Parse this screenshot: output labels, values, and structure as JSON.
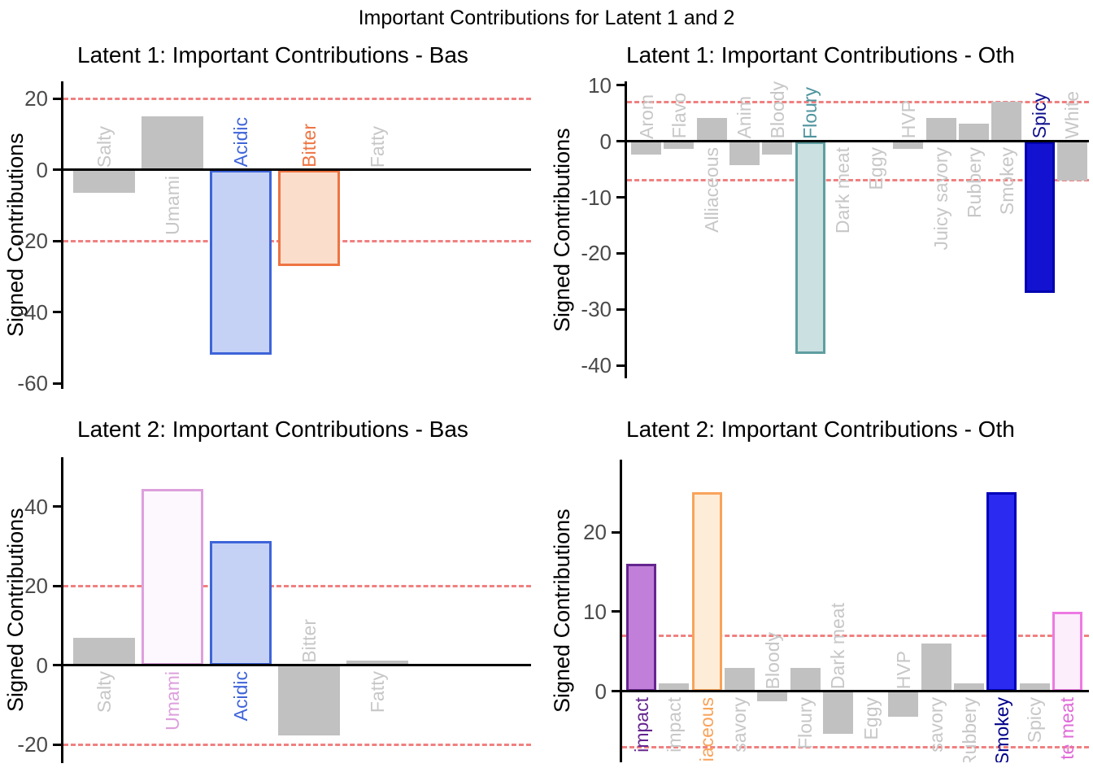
{
  "main_title": "Important Contributions for Latent 1 and 2",
  "threshold_color": "#f08080",
  "axis_color": "#000000",
  "tick_label_color": "#4a4a4a",
  "chart_data": [
    {
      "type": "bar",
      "title": "Latent 1: Important Contributions - Bas",
      "ylabel": "Signed Contributions",
      "yticks": [
        20,
        0,
        -20,
        -40,
        -60
      ],
      "ylim": [
        -61.5,
        24.8
      ],
      "thresholds": [
        20,
        -20
      ],
      "grid": false,
      "legend": "none",
      "categories": [
        "Salty",
        "Umami",
        "Acidic",
        "Bitter",
        "Fatty"
      ],
      "values": [
        -6.5,
        15,
        -52,
        -27,
        -0.3
      ],
      "bars": [
        {
          "label": "Salty",
          "value": -6.5,
          "fill": "#c1c1c1",
          "stroke": "#c1c1c1",
          "label_color": "#c7c7c7"
        },
        {
          "label": "Umami",
          "value": 15,
          "fill": "#c1c1c1",
          "stroke": "#c1c1c1",
          "label_color": "#c7c7c7"
        },
        {
          "label": "Acidic",
          "value": -52,
          "fill": "#c6d2f5",
          "stroke": "#3e64d9",
          "label_color": "#3e64d9"
        },
        {
          "label": "Bitter",
          "value": -27,
          "fill": "#fbddcb",
          "stroke": "#ee7442",
          "label_color": "#ee7442"
        },
        {
          "label": "Fatty",
          "value": -0.3,
          "fill": "#c1c1c1",
          "stroke": "#c1c1c1",
          "label_color": "#c7c7c7"
        }
      ]
    },
    {
      "type": "bar",
      "title": "Latent 1: Important Contributions - Oth",
      "ylabel": "Signed Contributions",
      "yticks": [
        10,
        0,
        -10,
        -20,
        -30,
        -40
      ],
      "ylim": [
        -42.3,
        10.7
      ],
      "thresholds": [
        7,
        -7
      ],
      "grid": false,
      "legend": "none",
      "categories": [
        "Arom",
        "Flavo",
        "Alliaceous",
        "Anim",
        "Bloody",
        "Floury",
        "Dark meat",
        "Eggy",
        "HVP",
        "Juicy savory",
        "Rubbery",
        "Smokey",
        "Spicy",
        "White"
      ],
      "values": [
        -2.3,
        -1.4,
        4.1,
        -4.2,
        -2.3,
        -38,
        0.2,
        0.2,
        -1.4,
        4.2,
        3.2,
        7,
        -27,
        -7
      ],
      "bars": [
        {
          "label": "Arom",
          "value": -2.3,
          "fill": "#c1c1c1",
          "stroke": "#c1c1c1",
          "label_color": "#c7c7c7"
        },
        {
          "label": "Flavo",
          "value": -1.4,
          "fill": "#c1c1c1",
          "stroke": "#c1c1c1",
          "label_color": "#c7c7c7"
        },
        {
          "label": "Alliaceous",
          "value": 4.1,
          "fill": "#c1c1c1",
          "stroke": "#c1c1c1",
          "label_color": "#c7c7c7"
        },
        {
          "label": "Anim",
          "value": -4.2,
          "fill": "#c1c1c1",
          "stroke": "#c1c1c1",
          "label_color": "#c7c7c7"
        },
        {
          "label": "Bloody",
          "value": -2.3,
          "fill": "#c1c1c1",
          "stroke": "#c1c1c1",
          "label_color": "#c7c7c7"
        },
        {
          "label": "Floury",
          "value": -38,
          "fill": "#cbe0e1",
          "stroke": "#5f9ea0",
          "label_color": "#4f949e"
        },
        {
          "label": "Dark meat",
          "value": 0.2,
          "fill": "#c1c1c1",
          "stroke": "#c1c1c1",
          "label_color": "#c7c7c7"
        },
        {
          "label": "Eggy",
          "value": 0.2,
          "fill": "#c1c1c1",
          "stroke": "#c1c1c1",
          "label_color": "#c7c7c7"
        },
        {
          "label": "HVP",
          "value": -1.4,
          "fill": "#c1c1c1",
          "stroke": "#c1c1c1",
          "label_color": "#c7c7c7"
        },
        {
          "label": "Juicy savory",
          "value": 4.2,
          "fill": "#c1c1c1",
          "stroke": "#c1c1c1",
          "label_color": "#c7c7c7"
        },
        {
          "label": "Rubbery",
          "value": 3.2,
          "fill": "#c1c1c1",
          "stroke": "#c1c1c1",
          "label_color": "#c7c7c7"
        },
        {
          "label": "Smokey",
          "value": 7,
          "fill": "#c1c1c1",
          "stroke": "#c1c1c1",
          "label_color": "#c7c7c7"
        },
        {
          "label": "Spicy",
          "value": -27,
          "fill": "#1212d0",
          "stroke": "#0000b0",
          "label_color": "#12128e"
        },
        {
          "label": "White",
          "value": -7,
          "fill": "#c1c1c1",
          "stroke": "#c1c1c1",
          "label_color": "#c7c7c7"
        }
      ]
    },
    {
      "type": "bar",
      "title": "Latent 2: Important Contributions - Bas",
      "ylabel": "Signed Contributions",
      "yticks": [
        40,
        20,
        0,
        -20
      ],
      "ylim": [
        -24.7,
        52.5
      ],
      "thresholds": [
        20,
        -20
      ],
      "grid": false,
      "legend": "none",
      "categories": [
        "Salty",
        "Umami",
        "Acidic",
        "Bitter",
        "Fatty"
      ],
      "values": [
        7,
        44.5,
        31.4,
        -17.7,
        1.2
      ],
      "bars": [
        {
          "label": "Salty",
          "value": 7,
          "fill": "#c1c1c1",
          "stroke": "#c1c1c1",
          "label_color": "#c7c7c7"
        },
        {
          "label": "Umami",
          "value": 44.5,
          "fill": "#fdf8fd",
          "stroke": "#dda0dd",
          "label_color": "#dda0dd"
        },
        {
          "label": "Acidic",
          "value": 31.4,
          "fill": "#c6d2f5",
          "stroke": "#3e64d9",
          "label_color": "#3e64d9"
        },
        {
          "label": "Bitter",
          "value": -17.7,
          "fill": "#c1c1c1",
          "stroke": "#c1c1c1",
          "label_color": "#c7c7c7"
        },
        {
          "label": "Fatty",
          "value": 1.2,
          "fill": "#c1c1c1",
          "stroke": "#c1c1c1",
          "label_color": "#c7c7c7"
        }
      ]
    },
    {
      "type": "bar",
      "title": "Latent 2: Important Contributions - Oth",
      "ylabel": "Signed Contributions",
      "yticks": [
        20,
        10,
        0
      ],
      "ylim": [
        -8.9,
        29.1
      ],
      "thresholds": [
        7,
        -7
      ],
      "grid": false,
      "legend": "none",
      "categories": [
        "impact",
        "impact",
        "iaceous",
        "savory",
        "Bloody",
        "Floury",
        "Dark meat",
        "Eggy",
        "HVP",
        "savory",
        "Rubbery",
        "Smokey",
        "Spicy",
        "te meat"
      ],
      "values": [
        16,
        1,
        25,
        3,
        -1.2,
        3,
        -5.3,
        0.2,
        -3.2,
        6,
        1,
        25,
        1,
        10
      ],
      "bars": [
        {
          "label": "impact",
          "value": 16,
          "fill": "#c17fd9",
          "stroke": "#65258f",
          "label_color": "#65258f"
        },
        {
          "label": "impact",
          "value": 1,
          "fill": "#c1c1c1",
          "stroke": "#c1c1c1",
          "label_color": "#c7c7c7"
        },
        {
          "label": "iaceous",
          "value": 25,
          "fill": "#fdecd8",
          "stroke": "#f9a35a",
          "label_color": "#f9a35a"
        },
        {
          "label": "savory",
          "value": 3,
          "fill": "#c1c1c1",
          "stroke": "#c1c1c1",
          "label_color": "#c7c7c7"
        },
        {
          "label": "Bloody",
          "value": -1.2,
          "fill": "#c1c1c1",
          "stroke": "#c1c1c1",
          "label_color": "#c7c7c7"
        },
        {
          "label": "Floury",
          "value": 3,
          "fill": "#c1c1c1",
          "stroke": "#c1c1c1",
          "label_color": "#c7c7c7"
        },
        {
          "label": "Dark meat",
          "value": -5.3,
          "fill": "#c1c1c1",
          "stroke": "#c1c1c1",
          "label_color": "#c7c7c7"
        },
        {
          "label": "Eggy",
          "value": 0.2,
          "fill": "#c1c1c1",
          "stroke": "#c1c1c1",
          "label_color": "#c7c7c7"
        },
        {
          "label": "HVP",
          "value": -3.2,
          "fill": "#c1c1c1",
          "stroke": "#c1c1c1",
          "label_color": "#c7c7c7"
        },
        {
          "label": "savory",
          "value": 6,
          "fill": "#c1c1c1",
          "stroke": "#c1c1c1",
          "label_color": "#c7c7c7"
        },
        {
          "label": "Rubbery",
          "value": 1,
          "fill": "#c1c1c1",
          "stroke": "#c1c1c1",
          "label_color": "#c7c7c7"
        },
        {
          "label": "Smokey",
          "value": 25,
          "fill": "#2a2af0",
          "stroke": "#0000b8",
          "label_color": "#00008b"
        },
        {
          "label": "Spicy",
          "value": 1,
          "fill": "#c1c1c1",
          "stroke": "#c1c1c1",
          "label_color": "#c7c7c7"
        },
        {
          "label": "te meat",
          "value": 10,
          "fill": "#fceefb",
          "stroke": "#ee7ae2",
          "label_color": "#e06ad8"
        }
      ]
    }
  ]
}
